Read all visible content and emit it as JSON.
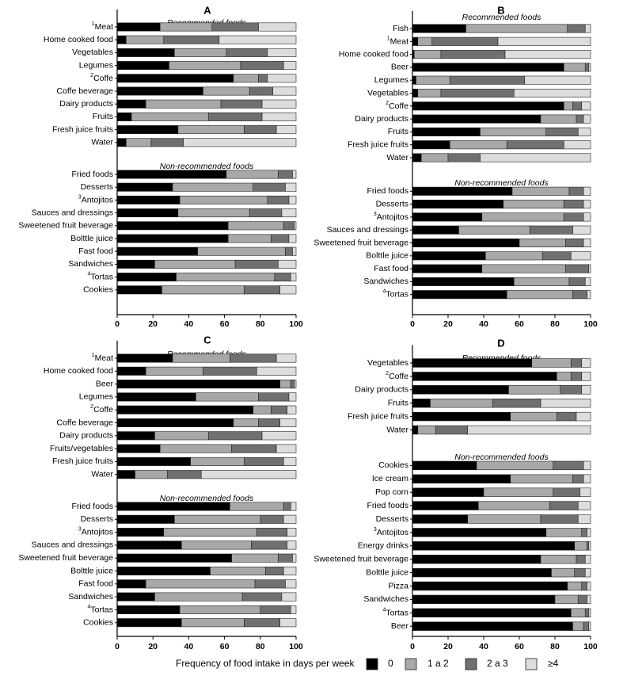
{
  "legend": {
    "title": "Frequency of food intake in days per week",
    "items": [
      {
        "label": "0",
        "color": "#000000"
      },
      {
        "label": "1 a 2",
        "color": "#a8a8a8"
      },
      {
        "label": "2 a 3",
        "color": "#707070"
      },
      {
        "label": "≥4",
        "color": "#dddddd"
      }
    ]
  },
  "chart_data": [
    {
      "type": "bar",
      "stacked": true,
      "orientation": "horizontal",
      "title": "A",
      "xlim": [
        0,
        100
      ],
      "xticks": [
        0,
        20,
        40,
        60,
        80,
        100
      ],
      "series_names": [
        "0",
        "1 a 2",
        "2 a 3",
        "≥4"
      ],
      "groups": [
        {
          "header": "Recommended foods",
          "rows": [
            {
              "sup": "1",
              "label": "Meat",
              "values": [
                24,
                29,
                26,
                21
              ]
            },
            {
              "label": "Home cooked food",
              "values": [
                5,
                21,
                31,
                43
              ]
            },
            {
              "label": "Vegetables",
              "values": [
                32,
                29,
                23,
                16
              ]
            },
            {
              "label": "Legumes",
              "values": [
                29,
                40,
                24,
                7
              ]
            },
            {
              "sup": "2",
              "label": "Coffe",
              "values": [
                65,
                14,
                5,
                16
              ]
            },
            {
              "label": "Coffe beverage",
              "values": [
                48,
                26,
                13,
                13
              ]
            },
            {
              "label": "Dairy products",
              "values": [
                16,
                42,
                23,
                19
              ]
            },
            {
              "label": "Fruits",
              "values": [
                8,
                43,
                30,
                19
              ]
            },
            {
              "label": "Fresh juice fruits",
              "values": [
                34,
                37,
                18,
                11
              ]
            },
            {
              "label": "Water",
              "values": [
                5,
                14,
                18,
                63
              ]
            }
          ]
        },
        {
          "header": "Non-recommended foods",
          "rows": [
            {
              "label": "Fried foods",
              "values": [
                61,
                29,
                8,
                2
              ]
            },
            {
              "label": "Desserts",
              "values": [
                31,
                45,
                18,
                6
              ]
            },
            {
              "label": "Desserts",
              "values": [
                31,
                45,
                18,
                6
              ]
            },
            {
              "sup": "3",
              "label": "Antojitos",
              "values": [
                35,
                49,
                12,
                4
              ]
            },
            {
              "label": "Sauces and dressings",
              "values": [
                34,
                40,
                18,
                8
              ]
            },
            {
              "label": "Sweetened fruit beverage",
              "values": [
                62,
                31,
                6,
                1
              ]
            },
            {
              "label": "Bolttle juice",
              "values": [
                62,
                24,
                10,
                4
              ]
            },
            {
              "label": "Fast food",
              "values": [
                45,
                49,
                4,
                2
              ]
            },
            {
              "label": "Sandwiches",
              "values": [
                21,
                45,
                24,
                10
              ]
            },
            {
              "sup": "4",
              "label": "Tortas",
              "values": [
                33,
                55,
                9,
                3
              ]
            },
            {
              "label": "Cookies",
              "values": [
                25,
                46,
                20,
                9
              ]
            }
          ]
        }
      ]
    },
    {
      "type": "bar",
      "stacked": true,
      "orientation": "horizontal",
      "title": "B",
      "xlim": [
        0,
        100
      ],
      "xticks": [
        0,
        20,
        40,
        60,
        80,
        100
      ],
      "series_names": [
        "0",
        "1 a 2",
        "2 a 3",
        "≥4"
      ],
      "groups": [
        {
          "header": "Recommended foods",
          "rows": [
            {
              "label": "Fish",
              "values": [
                30,
                57,
                10,
                3
              ]
            },
            {
              "sup": "1",
              "label": "Meat",
              "values": [
                3,
                8,
                37,
                52
              ]
            },
            {
              "label": "Home cooked food",
              "values": [
                1,
                15,
                36,
                48
              ]
            },
            {
              "label": "Beer",
              "values": [
                85,
                12,
                2,
                1
              ]
            },
            {
              "label": "Legumes",
              "values": [
                2,
                19,
                42,
                37
              ]
            },
            {
              "label": "Vegetables",
              "values": [
                3,
                13,
                41,
                43
              ]
            },
            {
              "sup": "2",
              "label": "Coffe",
              "values": [
                85,
                5,
                5,
                5
              ]
            },
            {
              "label": "Dairy products",
              "values": [
                72,
                20,
                4,
                4
              ]
            },
            {
              "label": "Fruits",
              "values": [
                38,
                37,
                18,
                7
              ]
            },
            {
              "label": "Fresh juice fruits",
              "values": [
                21,
                32,
                32,
                15
              ]
            },
            {
              "label": "Water",
              "values": [
                5,
                15,
                18,
                62
              ]
            }
          ]
        },
        {
          "header": "Non-recommended foods",
          "rows": [
            {
              "label": "Fried foods",
              "values": [
                56,
                32,
                8,
                4
              ]
            },
            {
              "label": "Desserts",
              "values": [
                51,
                34,
                11,
                4
              ]
            },
            {
              "sup": "3",
              "label": "Antojitos",
              "values": [
                39,
                46,
                11,
                4
              ]
            },
            {
              "label": "Sauces and dressings",
              "values": [
                26,
                40,
                24,
                10
              ]
            },
            {
              "label": "Sweetened fruit beverage",
              "values": [
                60,
                26,
                10,
                4
              ]
            },
            {
              "label": "Bolttle juice",
              "values": [
                41,
                32,
                16,
                11
              ]
            },
            {
              "label": "Fast food",
              "values": [
                39,
                47,
                13,
                1
              ]
            },
            {
              "label": "Sandwiches",
              "values": [
                57,
                31,
                9,
                3
              ]
            },
            {
              "sup": "4",
              "label": "Tortas",
              "values": [
                53,
                37,
                8,
                2
              ]
            }
          ]
        }
      ]
    },
    {
      "type": "bar",
      "stacked": true,
      "orientation": "horizontal",
      "title": "C",
      "xlim": [
        0,
        100
      ],
      "xticks": [
        0,
        20,
        40,
        60,
        80,
        100
      ],
      "series_names": [
        "0",
        "1 a 2",
        "2 a 3",
        "≥4"
      ],
      "groups": [
        {
          "header": "Recommended foods",
          "rows": [
            {
              "sup": "1",
              "label": "Meat",
              "values": [
                31,
                32,
                26,
                11
              ]
            },
            {
              "label": "Home cooked food",
              "values": [
                16,
                32,
                30,
                22
              ]
            },
            {
              "label": "Beer",
              "values": [
                91,
                6,
                2,
                1
              ]
            },
            {
              "label": "Legumes",
              "values": [
                44,
                35,
                17,
                4
              ]
            },
            {
              "sup": "2",
              "label": "Coffe",
              "values": [
                76,
                10,
                9,
                5
              ]
            },
            {
              "label": "Coffe beverage",
              "values": [
                65,
                14,
                12,
                9
              ]
            },
            {
              "label": "Dairy products",
              "values": [
                21,
                30,
                30,
                19
              ]
            },
            {
              "label": "Fruits/vegetables",
              "values": [
                24,
                40,
                25,
                11
              ]
            },
            {
              "label": "Fresh juice fruits",
              "values": [
                41,
                30,
                22,
                7
              ]
            },
            {
              "label": "Water",
              "values": [
                10,
                18,
                19,
                53
              ]
            }
          ]
        },
        {
          "header": "Non-recommended foods",
          "rows": [
            {
              "label": "Fried foods",
              "values": [
                63,
                30,
                4,
                3
              ]
            },
            {
              "label": "Desserts",
              "values": [
                32,
                48,
                13,
                7
              ]
            },
            {
              "sup": "3",
              "label": "Antojitos",
              "values": [
                26,
                52,
                17,
                5
              ]
            },
            {
              "label": "Sauces and dressings",
              "values": [
                36,
                39,
                20,
                5
              ]
            },
            {
              "label": "Sweetened fruit beverage",
              "values": [
                64,
                26,
                8,
                2
              ]
            },
            {
              "label": "Bolttle juice",
              "values": [
                52,
                31,
                10,
                7
              ]
            },
            {
              "label": "Fast food",
              "values": [
                16,
                61,
                17,
                6
              ]
            },
            {
              "label": "Sandwiches",
              "values": [
                21,
                49,
                22,
                8
              ]
            },
            {
              "sup": "4",
              "label": "Tortas",
              "values": [
                35,
                45,
                17,
                3
              ]
            },
            {
              "label": "Cookies",
              "values": [
                36,
                35,
                20,
                9
              ]
            }
          ]
        }
      ]
    },
    {
      "type": "bar",
      "stacked": true,
      "orientation": "horizontal",
      "title": "D",
      "xlim": [
        0,
        100
      ],
      "xticks": [
        0,
        20,
        40,
        60,
        80,
        100
      ],
      "series_names": [
        "0",
        "1 a 2",
        "2 a 3",
        "≥4"
      ],
      "groups": [
        {
          "header": "Recommended foods",
          "rows": [
            {
              "label": "Vegetables",
              "values": [
                67,
                22,
                6,
                5
              ]
            },
            {
              "sup": "2",
              "label": "Coffe",
              "values": [
                81,
                8,
                6,
                5
              ]
            },
            {
              "label": "Dairy products",
              "values": [
                54,
                29,
                12,
                5
              ]
            },
            {
              "label": "Fruits",
              "values": [
                10,
                35,
                27,
                28
              ]
            },
            {
              "label": "Fresh juice fruits",
              "values": [
                55,
                26,
                11,
                8
              ]
            },
            {
              "label": "Water",
              "values": [
                3,
                10,
                18,
                69
              ]
            }
          ]
        },
        {
          "header": "Non-recommended foods",
          "rows": [
            {
              "label": "Cookies",
              "values": [
                36,
                43,
                17,
                4
              ]
            },
            {
              "label": "Ice cream",
              "values": [
                55,
                35,
                6,
                4
              ]
            },
            {
              "label": "Pop corn",
              "values": [
                40,
                39,
                15,
                6
              ]
            },
            {
              "label": "Fried foods",
              "values": [
                37,
                40,
                16,
                7
              ]
            },
            {
              "label": "Desserts",
              "values": [
                31,
                41,
                21,
                7
              ]
            },
            {
              "sup": "3",
              "label": "Antojitos",
              "values": [
                75,
                20,
                3,
                2
              ]
            },
            {
              "label": "Energy drinks",
              "values": [
                91,
                7,
                1,
                1
              ]
            },
            {
              "label": "Sweetened fruit beverage",
              "values": [
                72,
                20,
                5,
                3
              ]
            },
            {
              "label": "Bolttle juice",
              "values": [
                78,
                13,
                6,
                3
              ]
            },
            {
              "label": "Pizza",
              "values": [
                87,
                8,
                3,
                2
              ]
            },
            {
              "label": "Sandwiches",
              "values": [
                80,
                13,
                5,
                2
              ]
            },
            {
              "sup": "4",
              "label": "Tortas",
              "values": [
                89,
                8,
                2,
                1
              ]
            },
            {
              "label": "Beer",
              "values": [
                90,
                6,
                3,
                1
              ]
            }
          ]
        }
      ]
    }
  ]
}
